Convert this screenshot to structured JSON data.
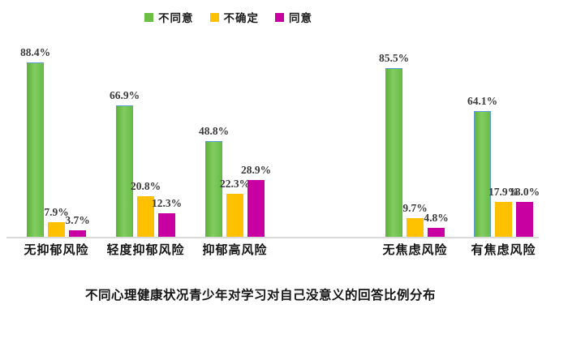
{
  "chart_data": {
    "type": "bar",
    "title": "不同心理健康状况青少年对学习对自己没意义的回答比例分布",
    "categories": [
      "无抑郁风险",
      "轻度抑郁风险",
      "抑郁高风险",
      "无焦虑风险",
      "有焦虑风险"
    ],
    "series": [
      {
        "name": "不同意",
        "color": "#6CBE45",
        "values": [
          88.4,
          66.9,
          48.8,
          85.5,
          64.1
        ]
      },
      {
        "name": "不确定",
        "color": "#FFC000",
        "values": [
          7.9,
          20.8,
          22.3,
          9.7,
          17.9
        ]
      },
      {
        "name": "同意",
        "color": "#C800A2",
        "values": [
          3.7,
          12.3,
          28.9,
          4.8,
          18.0
        ]
      }
    ],
    "value_suffix": "%",
    "value_decimals": 1,
    "ylim": [
      0,
      100
    ],
    "grid": false,
    "legend_position": "top",
    "data_labels": "above-bars"
  },
  "colors": {
    "axis_line": "#D9D9D9",
    "value_text": "#3A3A3A",
    "category_text": "#141414",
    "green_bar_border": "#5B9BD5",
    "background": "#FFFFFF"
  }
}
